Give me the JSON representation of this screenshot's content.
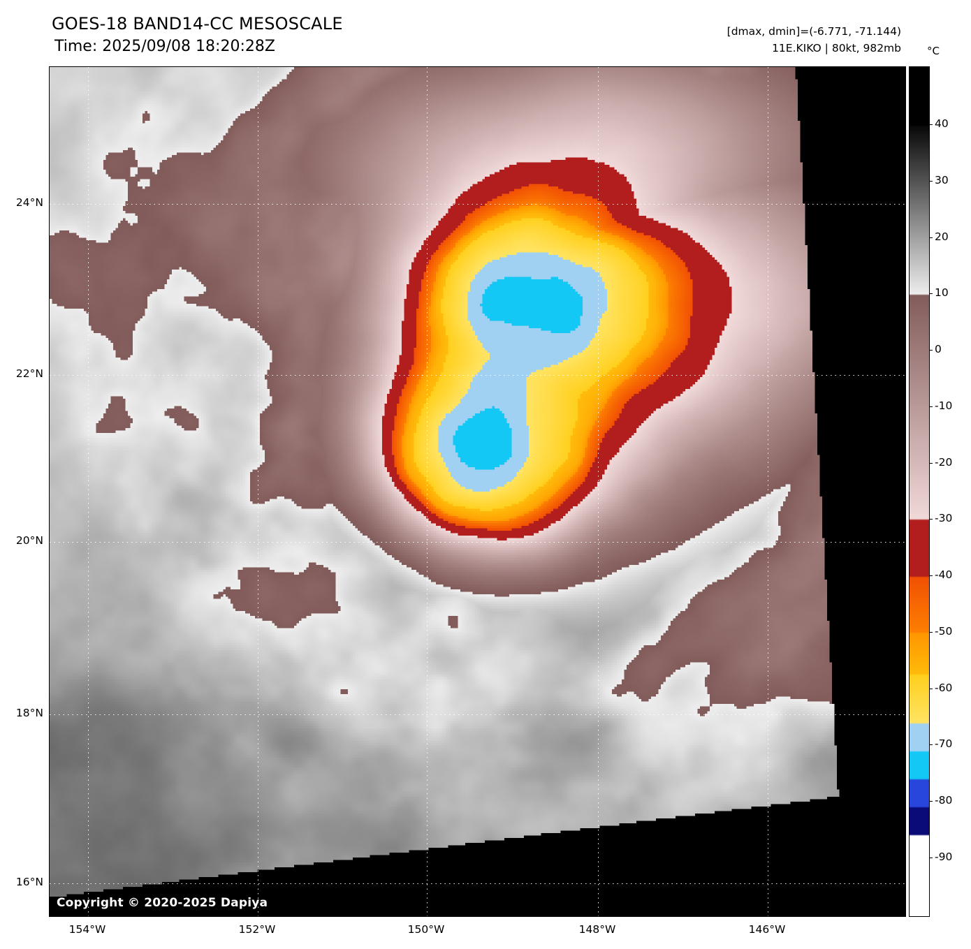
{
  "header": {
    "title": "GOES-18 BAND14-CC MESOSCALE",
    "time": "Time: 2025/09/08 18:20:28Z",
    "dmax_dmin": "[dmax, dmin]=(-6.771, -71.144)",
    "storm_info": "11E.KIKO | 80kt, 982mb"
  },
  "map": {
    "lat_labels": [
      "24°N",
      "22°N",
      "20°N",
      "18°N",
      "16°N"
    ],
    "lon_labels": [
      "154°W",
      "152°W",
      "150°W",
      "148°W",
      "146°W"
    ],
    "copyright": "Copyright © 2020-2025 Dapiya"
  },
  "colorbar": {
    "unit": "°C",
    "ticks": [
      "40",
      "30",
      "20",
      "10",
      "0",
      "-10",
      "-20",
      "-30",
      "-40",
      "-50",
      "-60",
      "-70",
      "-80",
      "-90"
    ],
    "segment_colors": {
      "warm_grayscale_dark": "#000000",
      "cold_grayscale_light": "#eeeeee",
      "mauve_brown": "#82605c",
      "pale_pink": "#f0dada",
      "dark_red": "#b21e1e",
      "orange_red": "#f25004",
      "orange": "#ff9400",
      "yellow": "#ffd832",
      "light_blue": "#a0d0f2",
      "cyan": "#14c8f5",
      "blue": "#2846dc",
      "navy": "#0a0a78",
      "coldest_white": "#ffffff"
    }
  }
}
